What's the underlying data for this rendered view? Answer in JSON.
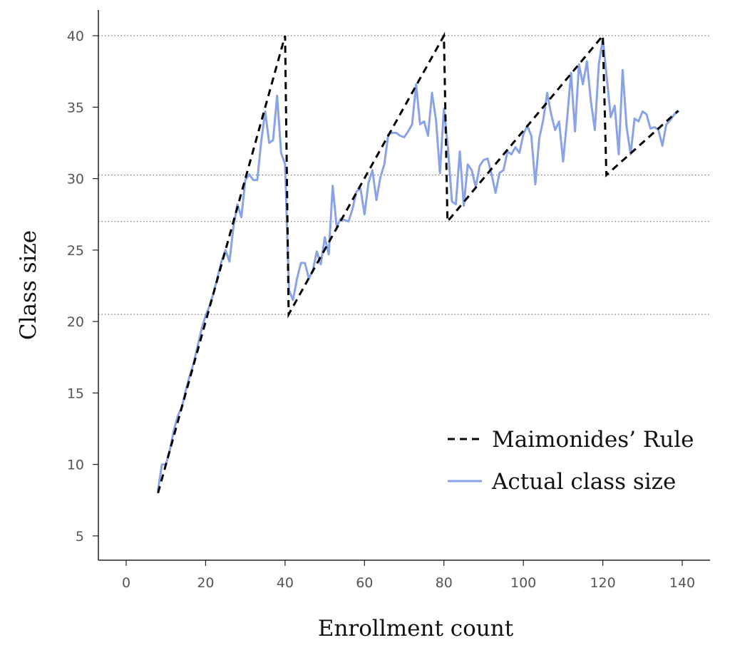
{
  "chart_data": {
    "type": "line",
    "xlabel": "Enrollment count",
    "ylabel": "Class size",
    "xlim": [
      -7,
      147
    ],
    "ylim": [
      3.3,
      41.8
    ],
    "x_ticks": [
      0,
      20,
      40,
      60,
      80,
      100,
      120,
      140
    ],
    "y_ticks": [
      5,
      10,
      15,
      20,
      25,
      30,
      35,
      40
    ],
    "grid": false,
    "reference_lines_y": [
      20.5,
      27.0,
      30.25,
      40.0
    ],
    "legend_position": "bottom-right",
    "series": [
      {
        "name": "Maimonides’ Rule",
        "style": "dashed",
        "color": "#000000",
        "segments": [
          {
            "x": [
              8,
              40
            ],
            "y": [
              8,
              40
            ]
          },
          {
            "x": [
              40,
              40.9
            ],
            "y": [
              40,
              20.5
            ]
          },
          {
            "x": [
              40.9,
              80
            ],
            "y": [
              20.5,
              40
            ]
          },
          {
            "x": [
              80,
              80.9
            ],
            "y": [
              40,
              27.0
            ]
          },
          {
            "x": [
              80.9,
              120
            ],
            "y": [
              27.0,
              40
            ]
          },
          {
            "x": [
              120,
              120.9
            ],
            "y": [
              40,
              30.25
            ]
          },
          {
            "x": [
              120.9,
              139
            ],
            "y": [
              30.25,
              34.75
            ]
          }
        ]
      },
      {
        "name": "Actual class size",
        "style": "solid",
        "color": "#8aa2e6",
        "x": [
          8,
          9,
          10,
          11,
          12,
          13,
          14,
          15,
          16,
          17,
          18,
          19,
          20,
          21,
          22,
          23,
          24,
          25,
          26,
          27,
          28,
          29,
          30,
          31,
          32,
          33,
          34,
          35,
          36,
          37,
          38,
          39,
          40,
          41,
          42,
          43,
          44,
          45,
          46,
          47,
          48,
          49,
          50,
          51,
          52,
          53,
          54,
          55,
          56,
          57,
          58,
          59,
          60,
          61,
          62,
          63,
          64,
          65,
          66,
          67,
          68,
          69,
          70,
          71,
          72,
          73,
          74,
          75,
          76,
          77,
          78,
          79,
          80,
          81,
          82,
          83,
          84,
          85,
          86,
          87,
          88,
          89,
          90,
          91,
          92,
          93,
          94,
          95,
          96,
          97,
          98,
          99,
          100,
          101,
          102,
          103,
          104,
          105,
          106,
          107,
          108,
          109,
          110,
          111,
          112,
          113,
          114,
          115,
          116,
          117,
          118,
          119,
          120,
          121,
          122,
          123,
          124,
          125,
          126,
          127,
          128,
          129,
          130,
          131,
          132,
          133,
          134,
          135,
          136,
          137,
          138,
          139
        ],
        "y": [
          8.2,
          10.0,
          10.0,
          11.0,
          12.4,
          13.4,
          14.0,
          15.2,
          16.2,
          17.1,
          18.3,
          19.5,
          20.4,
          21.1,
          22.0,
          23.1,
          24.2,
          25.0,
          24.2,
          26.6,
          28.2,
          27.3,
          29.9,
          30.3,
          29.9,
          29.9,
          32.6,
          34.7,
          32.5,
          32.7,
          35.8,
          31.8,
          31.0,
          22.2,
          21.5,
          23.0,
          24.1,
          24.1,
          23.0,
          23.6,
          24.9,
          24.0,
          25.9,
          24.7,
          29.5,
          26.6,
          27.2,
          27.1,
          27.0,
          27.9,
          29.1,
          29.3,
          27.5,
          29.7,
          30.6,
          28.5,
          30.1,
          31.0,
          33.1,
          33.2,
          33.2,
          33.0,
          32.9,
          33.3,
          33.8,
          36.6,
          33.8,
          34.0,
          33.0,
          36.0,
          34.1,
          30.4,
          34.9,
          32.2,
          28.4,
          28.2,
          31.9,
          28.1,
          31.0,
          30.6,
          29.4,
          30.9,
          31.3,
          31.4,
          30.3,
          29.0,
          30.4,
          30.6,
          31.9,
          31.7,
          32.2,
          31.8,
          33.1,
          33.7,
          33.0,
          29.6,
          32.8,
          34.1,
          36.0,
          34.5,
          33.4,
          34.0,
          31.2,
          34.1,
          37.4,
          33.3,
          38.0,
          36.6,
          38.2,
          35.4,
          33.4,
          38.0,
          39.8,
          37.1,
          34.3,
          35.1,
          31.7,
          37.6,
          33.6,
          31.7,
          34.2,
          34.0,
          34.7,
          34.5,
          33.5,
          33.6,
          33.4,
          32.3,
          33.8,
          34.1,
          34.5,
          34.7
        ]
      }
    ]
  }
}
